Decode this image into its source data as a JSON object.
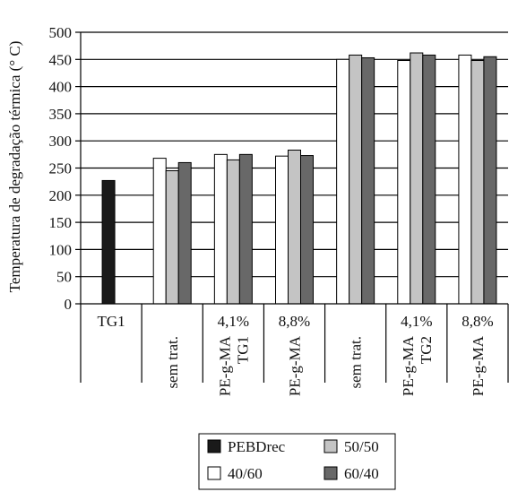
{
  "chart_data": {
    "type": "bar",
    "ylabel": "Temperatura de degradação térmica (° C)",
    "ylim": [
      0,
      500
    ],
    "yticks": [
      0,
      50,
      100,
      150,
      200,
      250,
      300,
      350,
      400,
      450,
      500
    ],
    "grid": "horizontal",
    "legend_placement": "bottom-center",
    "groups": [
      {
        "top_label": "TG1",
        "rotated_label": [],
        "values": {
          "PEBDrec": 227
        }
      },
      {
        "top_label": "",
        "rotated_label": [
          "sem trat."
        ],
        "values": {
          "40/60": 268,
          "50/50": 245,
          "60/40": 260
        }
      },
      {
        "top_label": "4,1%",
        "rotated_label": [
          "PE-g-MA",
          "TG1"
        ],
        "values": {
          "40/60": 275,
          "50/50": 265,
          "60/40": 275
        }
      },
      {
        "top_label": "8,8%",
        "rotated_label": [
          "PE-g-MA"
        ],
        "values": {
          "40/60": 272,
          "50/50": 283,
          "60/40": 273
        }
      },
      {
        "top_label": "",
        "rotated_label": [
          "sem trat."
        ],
        "values": {
          "40/60": 450,
          "50/50": 458,
          "60/40": 453
        }
      },
      {
        "top_label": "4,1%",
        "rotated_label": [
          "PE-g-MA",
          "TG2"
        ],
        "values": {
          "40/60": 448,
          "50/50": 462,
          "60/40": 458
        }
      },
      {
        "top_label": "8,8%",
        "rotated_label": [
          "PE-g-MA"
        ],
        "values": {
          "40/60": 458,
          "50/50": 448,
          "60/40": 455
        }
      }
    ],
    "series": [
      {
        "name": "PEBDrec",
        "color": "#1a1a1a"
      },
      {
        "name": "40/60",
        "color": "#ffffff"
      },
      {
        "name": "50/50",
        "color": "#c4c4c4"
      },
      {
        "name": "60/40",
        "color": "#686868"
      }
    ],
    "legend_order": [
      "PEBDrec",
      "50/50",
      "40/60",
      "60/40"
    ]
  }
}
